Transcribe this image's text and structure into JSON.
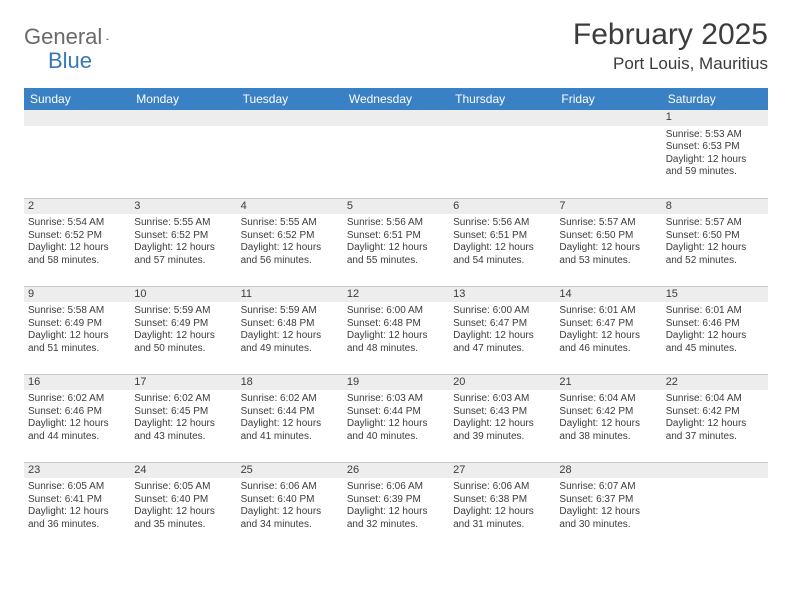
{
  "brand": {
    "word1": "General",
    "word2": "Blue"
  },
  "title": "February 2025",
  "location": "Port Louis, Mauritius",
  "colors": {
    "header_bg": "#3a80c4",
    "header_text": "#ffffff",
    "daynum_bg": "#ededed",
    "border": "#c9c9c9",
    "brand_gray": "#6a6a6a",
    "brand_blue": "#3878b8",
    "text": "#3c3c3c"
  },
  "dayNames": [
    "Sunday",
    "Monday",
    "Tuesday",
    "Wednesday",
    "Thursday",
    "Friday",
    "Saturday"
  ],
  "weeks": [
    [
      null,
      null,
      null,
      null,
      null,
      null,
      {
        "n": "1",
        "sr": "Sunrise: 5:53 AM",
        "ss": "Sunset: 6:53 PM",
        "d1": "Daylight: 12 hours",
        "d2": "and 59 minutes."
      }
    ],
    [
      {
        "n": "2",
        "sr": "Sunrise: 5:54 AM",
        "ss": "Sunset: 6:52 PM",
        "d1": "Daylight: 12 hours",
        "d2": "and 58 minutes."
      },
      {
        "n": "3",
        "sr": "Sunrise: 5:55 AM",
        "ss": "Sunset: 6:52 PM",
        "d1": "Daylight: 12 hours",
        "d2": "and 57 minutes."
      },
      {
        "n": "4",
        "sr": "Sunrise: 5:55 AM",
        "ss": "Sunset: 6:52 PM",
        "d1": "Daylight: 12 hours",
        "d2": "and 56 minutes."
      },
      {
        "n": "5",
        "sr": "Sunrise: 5:56 AM",
        "ss": "Sunset: 6:51 PM",
        "d1": "Daylight: 12 hours",
        "d2": "and 55 minutes."
      },
      {
        "n": "6",
        "sr": "Sunrise: 5:56 AM",
        "ss": "Sunset: 6:51 PM",
        "d1": "Daylight: 12 hours",
        "d2": "and 54 minutes."
      },
      {
        "n": "7",
        "sr": "Sunrise: 5:57 AM",
        "ss": "Sunset: 6:50 PM",
        "d1": "Daylight: 12 hours",
        "d2": "and 53 minutes."
      },
      {
        "n": "8",
        "sr": "Sunrise: 5:57 AM",
        "ss": "Sunset: 6:50 PM",
        "d1": "Daylight: 12 hours",
        "d2": "and 52 minutes."
      }
    ],
    [
      {
        "n": "9",
        "sr": "Sunrise: 5:58 AM",
        "ss": "Sunset: 6:49 PM",
        "d1": "Daylight: 12 hours",
        "d2": "and 51 minutes."
      },
      {
        "n": "10",
        "sr": "Sunrise: 5:59 AM",
        "ss": "Sunset: 6:49 PM",
        "d1": "Daylight: 12 hours",
        "d2": "and 50 minutes."
      },
      {
        "n": "11",
        "sr": "Sunrise: 5:59 AM",
        "ss": "Sunset: 6:48 PM",
        "d1": "Daylight: 12 hours",
        "d2": "and 49 minutes."
      },
      {
        "n": "12",
        "sr": "Sunrise: 6:00 AM",
        "ss": "Sunset: 6:48 PM",
        "d1": "Daylight: 12 hours",
        "d2": "and 48 minutes."
      },
      {
        "n": "13",
        "sr": "Sunrise: 6:00 AM",
        "ss": "Sunset: 6:47 PM",
        "d1": "Daylight: 12 hours",
        "d2": "and 47 minutes."
      },
      {
        "n": "14",
        "sr": "Sunrise: 6:01 AM",
        "ss": "Sunset: 6:47 PM",
        "d1": "Daylight: 12 hours",
        "d2": "and 46 minutes."
      },
      {
        "n": "15",
        "sr": "Sunrise: 6:01 AM",
        "ss": "Sunset: 6:46 PM",
        "d1": "Daylight: 12 hours",
        "d2": "and 45 minutes."
      }
    ],
    [
      {
        "n": "16",
        "sr": "Sunrise: 6:02 AM",
        "ss": "Sunset: 6:46 PM",
        "d1": "Daylight: 12 hours",
        "d2": "and 44 minutes."
      },
      {
        "n": "17",
        "sr": "Sunrise: 6:02 AM",
        "ss": "Sunset: 6:45 PM",
        "d1": "Daylight: 12 hours",
        "d2": "and 43 minutes."
      },
      {
        "n": "18",
        "sr": "Sunrise: 6:02 AM",
        "ss": "Sunset: 6:44 PM",
        "d1": "Daylight: 12 hours",
        "d2": "and 41 minutes."
      },
      {
        "n": "19",
        "sr": "Sunrise: 6:03 AM",
        "ss": "Sunset: 6:44 PM",
        "d1": "Daylight: 12 hours",
        "d2": "and 40 minutes."
      },
      {
        "n": "20",
        "sr": "Sunrise: 6:03 AM",
        "ss": "Sunset: 6:43 PM",
        "d1": "Daylight: 12 hours",
        "d2": "and 39 minutes."
      },
      {
        "n": "21",
        "sr": "Sunrise: 6:04 AM",
        "ss": "Sunset: 6:42 PM",
        "d1": "Daylight: 12 hours",
        "d2": "and 38 minutes."
      },
      {
        "n": "22",
        "sr": "Sunrise: 6:04 AM",
        "ss": "Sunset: 6:42 PM",
        "d1": "Daylight: 12 hours",
        "d2": "and 37 minutes."
      }
    ],
    [
      {
        "n": "23",
        "sr": "Sunrise: 6:05 AM",
        "ss": "Sunset: 6:41 PM",
        "d1": "Daylight: 12 hours",
        "d2": "and 36 minutes."
      },
      {
        "n": "24",
        "sr": "Sunrise: 6:05 AM",
        "ss": "Sunset: 6:40 PM",
        "d1": "Daylight: 12 hours",
        "d2": "and 35 minutes."
      },
      {
        "n": "25",
        "sr": "Sunrise: 6:06 AM",
        "ss": "Sunset: 6:40 PM",
        "d1": "Daylight: 12 hours",
        "d2": "and 34 minutes."
      },
      {
        "n": "26",
        "sr": "Sunrise: 6:06 AM",
        "ss": "Sunset: 6:39 PM",
        "d1": "Daylight: 12 hours",
        "d2": "and 32 minutes."
      },
      {
        "n": "27",
        "sr": "Sunrise: 6:06 AM",
        "ss": "Sunset: 6:38 PM",
        "d1": "Daylight: 12 hours",
        "d2": "and 31 minutes."
      },
      {
        "n": "28",
        "sr": "Sunrise: 6:07 AM",
        "ss": "Sunset: 6:37 PM",
        "d1": "Daylight: 12 hours",
        "d2": "and 30 minutes."
      },
      null
    ]
  ]
}
